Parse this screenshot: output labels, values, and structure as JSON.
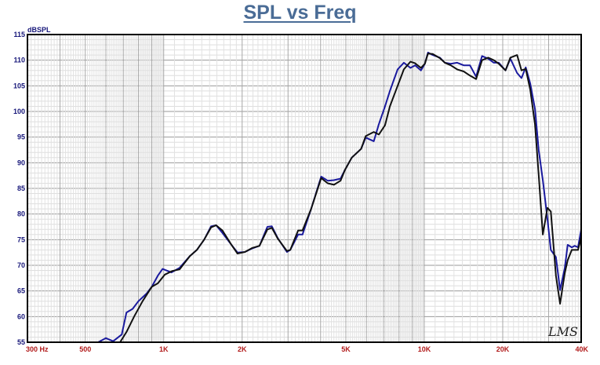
{
  "chart_data": {
    "type": "line",
    "title": "SPL vs Freq",
    "ylabel": "dBSPL",
    "xlabel": "",
    "x_scale": "log",
    "xlim": [
      300,
      40000
    ],
    "ylim": [
      55,
      115
    ],
    "grid": true,
    "y_ticks": [
      55,
      60,
      65,
      70,
      75,
      80,
      85,
      90,
      95,
      100,
      105,
      110,
      115
    ],
    "x_ticks": [
      {
        "value": 300,
        "label": "300 Hz"
      },
      {
        "value": 500,
        "label": "500"
      },
      {
        "value": 1000,
        "label": "1K"
      },
      {
        "value": 2000,
        "label": "2K"
      },
      {
        "value": 5000,
        "label": "5K"
      },
      {
        "value": 10000,
        "label": "10K"
      },
      {
        "value": 20000,
        "label": "20K"
      },
      {
        "value": 40000,
        "label": "40K"
      }
    ],
    "watermark": "LMS",
    "series": [
      {
        "color": "#1a1a9e",
        "points": [
          [
            300,
            55
          ],
          [
            560,
            55
          ],
          [
            600,
            55.8
          ],
          [
            640,
            55.2
          ],
          [
            690,
            56.5
          ],
          [
            720,
            60.8
          ],
          [
            760,
            61.5
          ],
          [
            800,
            63
          ],
          [
            860,
            64.5
          ],
          [
            900,
            65.8
          ],
          [
            950,
            68
          ],
          [
            990,
            69.3
          ],
          [
            1070,
            68.6
          ],
          [
            1150,
            69.5
          ],
          [
            1260,
            71.8
          ],
          [
            1340,
            73
          ],
          [
            1430,
            75
          ],
          [
            1520,
            77.6
          ],
          [
            1590,
            77.8
          ],
          [
            1680,
            76.3
          ],
          [
            1820,
            74
          ],
          [
            1920,
            72.5
          ],
          [
            2050,
            72.6
          ],
          [
            2190,
            73.3
          ],
          [
            2330,
            73.8
          ],
          [
            2500,
            77.5
          ],
          [
            2600,
            77.6
          ],
          [
            2740,
            75.3
          ],
          [
            2970,
            72.6
          ],
          [
            3060,
            73
          ],
          [
            3280,
            76
          ],
          [
            3410,
            76
          ],
          [
            3680,
            81
          ],
          [
            4020,
            87.3
          ],
          [
            4260,
            86.5
          ],
          [
            4500,
            86.6
          ],
          [
            4770,
            86.9
          ],
          [
            4960,
            88.6
          ],
          [
            5270,
            91
          ],
          [
            5720,
            92.7
          ],
          [
            5960,
            94.9
          ],
          [
            6400,
            94.2
          ],
          [
            6690,
            97.5
          ],
          [
            7070,
            101
          ],
          [
            7380,
            104
          ],
          [
            7900,
            108.2
          ],
          [
            8350,
            109.5
          ],
          [
            8850,
            108.5
          ],
          [
            9220,
            109
          ],
          [
            9710,
            108
          ],
          [
            10050,
            109.3
          ],
          [
            10330,
            111.5
          ],
          [
            10770,
            111
          ],
          [
            11480,
            110.5
          ],
          [
            11990,
            109.5
          ],
          [
            12630,
            109.3
          ],
          [
            13370,
            109.5
          ],
          [
            14160,
            109
          ],
          [
            14970,
            109
          ],
          [
            15800,
            106.8
          ],
          [
            16660,
            110.8
          ],
          [
            17580,
            110.3
          ],
          [
            18480,
            109.5
          ],
          [
            19310,
            109.5
          ],
          [
            20500,
            108
          ],
          [
            21400,
            110.3
          ],
          [
            22700,
            107.5
          ],
          [
            23600,
            106.5
          ],
          [
            24500,
            108.6
          ],
          [
            25500,
            105.5
          ],
          [
            26600,
            100.5
          ],
          [
            27500,
            92.4
          ],
          [
            28500,
            86.6
          ],
          [
            29700,
            79
          ],
          [
            30600,
            73
          ],
          [
            32000,
            71.6
          ],
          [
            33200,
            65.2
          ],
          [
            34600,
            69.5
          ],
          [
            35500,
            74
          ],
          [
            36800,
            73.5
          ],
          [
            37800,
            73.8
          ],
          [
            38900,
            73.5
          ],
          [
            40000,
            77
          ]
        ]
      },
      {
        "color": "#111111",
        "points": [
          [
            300,
            55
          ],
          [
            630,
            55
          ],
          [
            680,
            55
          ],
          [
            720,
            57
          ],
          [
            770,
            60
          ],
          [
            830,
            63
          ],
          [
            900,
            65.8
          ],
          [
            950,
            66.5
          ],
          [
            1010,
            68.2
          ],
          [
            1080,
            68.9
          ],
          [
            1150,
            69.2
          ],
          [
            1260,
            71.8
          ],
          [
            1340,
            73
          ],
          [
            1430,
            75
          ],
          [
            1520,
            77.4
          ],
          [
            1590,
            77.8
          ],
          [
            1680,
            76.8
          ],
          [
            1820,
            74
          ],
          [
            1920,
            72.3
          ],
          [
            2050,
            72.6
          ],
          [
            2190,
            73.4
          ],
          [
            2330,
            73.8
          ],
          [
            2500,
            77
          ],
          [
            2600,
            77.3
          ],
          [
            2740,
            75.2
          ],
          [
            2970,
            72.8
          ],
          [
            3060,
            73
          ],
          [
            3280,
            76.8
          ],
          [
            3410,
            76.8
          ],
          [
            3680,
            81
          ],
          [
            4020,
            87
          ],
          [
            4260,
            86
          ],
          [
            4500,
            85.7
          ],
          [
            4770,
            86.5
          ],
          [
            4960,
            88.6
          ],
          [
            5270,
            91
          ],
          [
            5720,
            92.7
          ],
          [
            5960,
            95.2
          ],
          [
            6400,
            96
          ],
          [
            6690,
            95.5
          ],
          [
            7070,
            97.3
          ],
          [
            7380,
            101
          ],
          [
            7900,
            105
          ],
          [
            8350,
            108.2
          ],
          [
            8850,
            109.7
          ],
          [
            9220,
            109.4
          ],
          [
            9710,
            108.5
          ],
          [
            10050,
            109.3
          ],
          [
            10330,
            111.3
          ],
          [
            10770,
            111.2
          ],
          [
            11480,
            110.4
          ],
          [
            11990,
            109.5
          ],
          [
            12630,
            109
          ],
          [
            13370,
            108.2
          ],
          [
            14160,
            107.8
          ],
          [
            14970,
            107
          ],
          [
            15800,
            106.3
          ],
          [
            16660,
            110
          ],
          [
            17580,
            110.5
          ],
          [
            18480,
            110
          ],
          [
            19310,
            109.3
          ],
          [
            20500,
            108
          ],
          [
            21400,
            110.5
          ],
          [
            22700,
            111
          ],
          [
            23600,
            108
          ],
          [
            24500,
            108.3
          ],
          [
            25500,
            104.3
          ],
          [
            26600,
            97.5
          ],
          [
            27500,
            87.5
          ],
          [
            28500,
            76
          ],
          [
            29700,
            81.2
          ],
          [
            30600,
            80.5
          ],
          [
            32000,
            68
          ],
          [
            33200,
            62.5
          ],
          [
            34600,
            68.5
          ],
          [
            35500,
            71
          ],
          [
            36800,
            73
          ],
          [
            37800,
            73
          ],
          [
            38900,
            73
          ],
          [
            40000,
            75.5
          ]
        ]
      }
    ]
  }
}
